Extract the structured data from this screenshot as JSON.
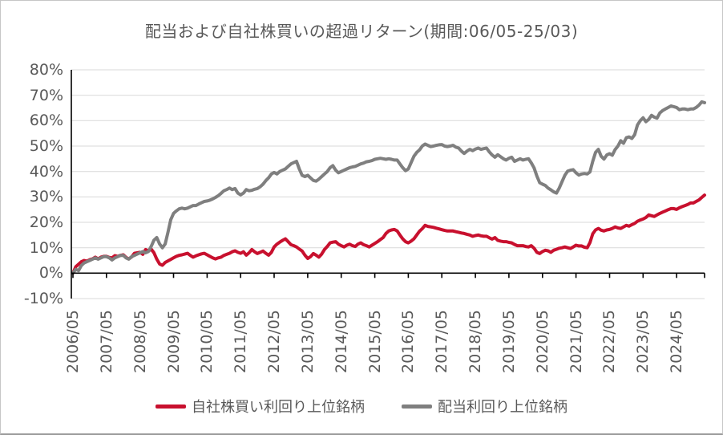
{
  "header": {
    "title": "配当および自社株買いの超過リターン(期間:06/05-25/03)"
  },
  "colors": {
    "buyback_red": "#C8102E",
    "dividend_gray": "#7F7F7F",
    "text_gray": "#595959",
    "gridline": "#D9D9D9",
    "axis": "#000000"
  },
  "legend": {
    "items": [
      {
        "key": "buyback",
        "label": "自社株買い利回り上位銘柄",
        "color": "#C8102E"
      },
      {
        "key": "dividend",
        "label": "配当利回り上位銘柄",
        "color": "#7F7F7F"
      }
    ]
  },
  "chart_data": {
    "type": "line",
    "title": "配当および自社株買いの超過リターン(期間:06/05-25/03)",
    "xlabel": "",
    "ylabel": "",
    "x_unit": "month",
    "x_start": "2006/05",
    "x_end": "2025/03",
    "months_per_x_tick": 12,
    "x_tick_labels": [
      "2006/05",
      "2007/05",
      "2008/05",
      "2009/05",
      "2010/05",
      "2011/05",
      "2012/05",
      "2013/05",
      "2014/05",
      "2015/05",
      "2016/05",
      "2017/05",
      "2018/05",
      "2019/05",
      "2020/05",
      "2021/05",
      "2022/05",
      "2023/05",
      "2024/05"
    ],
    "y_tick_labels": [
      "80%",
      "70%",
      "60%",
      "50%",
      "40%",
      "30%",
      "20%",
      "10%",
      "0%",
      "-10%"
    ],
    "y_tick_values": [
      80,
      70,
      60,
      50,
      40,
      30,
      20,
      10,
      0,
      -10
    ],
    "ylim": [
      -10,
      80
    ],
    "grid": "horizontal",
    "legend_position": "bottom",
    "series": [
      {
        "key": "buyback",
        "name": "自社株買い利回り上位銘柄",
        "color": "#C8102E",
        "values": [
          0,
          2.5,
          3.5,
          4.5,
          5,
          4.7,
          5.3,
          5.6,
          6.3,
          5.6,
          6.3,
          6.6,
          6.6,
          6.2,
          6,
          6.9,
          6.6,
          7,
          7.2,
          6.2,
          5.6,
          6.4,
          7.8,
          8,
          8.2,
          7.4,
          9.3,
          8.8,
          9.5,
          8,
          5.5,
          3.6,
          3.1,
          4.2,
          4.8,
          5.4,
          6,
          6.6,
          7,
          7.2,
          7.5,
          7.8,
          7,
          6.3,
          6.8,
          7.2,
          7.6,
          7.8,
          7.2,
          6.6,
          6,
          5.6,
          6,
          6.3,
          7,
          7.4,
          7.8,
          8.4,
          8.8,
          8.2,
          7.8,
          8.4,
          7.1,
          8,
          9.3,
          8.4,
          7.7,
          8.2,
          8.7,
          7.8,
          7.1,
          8.2,
          10.3,
          11.4,
          12.2,
          12.9,
          13.5,
          12.4,
          11.2,
          10.8,
          10.3,
          9.5,
          8.7,
          7.1,
          5.8,
          6.5,
          7.7,
          7.1,
          6.3,
          7.5,
          9.3,
          10.5,
          11.9,
          12.2,
          12.4,
          11.4,
          10.8,
          10.3,
          11,
          11.4,
          10.8,
          10.5,
          11.4,
          11.9,
          11.2,
          10.8,
          10.3,
          11,
          11.7,
          12.4,
          13.2,
          14,
          15.6,
          16.6,
          17,
          17.2,
          16.6,
          15,
          13.5,
          12.4,
          11.9,
          12.6,
          13.5,
          15,
          16.5,
          17.5,
          18.8,
          18.4,
          18.2,
          18,
          17.7,
          17.4,
          17.1,
          16.8,
          16.6,
          16.6,
          16.6,
          16.3,
          16.1,
          15.8,
          15.6,
          15.3,
          15,
          14.5,
          14.8,
          15,
          14.7,
          14.5,
          14.5,
          13.9,
          13.4,
          14,
          12.9,
          12.6,
          12.4,
          12.4,
          12.1,
          11.9,
          11.3,
          10.8,
          10.8,
          10.8,
          10.5,
          10.3,
          10.8,
          9.8,
          8.2,
          7.7,
          8.5,
          9,
          8.8,
          8.2,
          9,
          9.4,
          9.8,
          10,
          10.3,
          10,
          9.7,
          10.3,
          11,
          10.7,
          10.7,
          10.2,
          10,
          12,
          15.5,
          17,
          17.6,
          16.9,
          16.6,
          17,
          17.2,
          17.6,
          18.2,
          17.8,
          17.6,
          18.2,
          18.8,
          18.5,
          19.1,
          19.6,
          20.4,
          20.9,
          21.3,
          21.9,
          22.9,
          22.6,
          22.3,
          22.9,
          23.5,
          24,
          24.5,
          25,
          25.4,
          25.4,
          25.1,
          25.7,
          26.2,
          26.6,
          27,
          27.6,
          27.6,
          28.2,
          28.8,
          29.8,
          30.7
        ]
      },
      {
        "key": "dividend",
        "name": "配当利回り上位銘柄",
        "color": "#7F7F7F",
        "values": [
          0,
          1.5,
          1,
          3,
          4,
          4.5,
          5,
          5.5,
          6,
          5.5,
          6,
          6.5,
          6.5,
          6,
          5.2,
          6,
          6.5,
          7,
          7,
          6,
          5.5,
          6.5,
          7,
          7.5,
          8,
          8.5,
          8,
          8.5,
          10.5,
          13,
          14,
          11.5,
          10,
          11.5,
          16,
          21,
          23.5,
          24.5,
          25.3,
          25.6,
          25.3,
          25.6,
          26.1,
          26.6,
          26.6,
          27.2,
          27.7,
          28.2,
          28.4,
          28.7,
          29.2,
          29.8,
          30.5,
          31.4,
          32.4,
          32.9,
          33.5,
          32.9,
          33.3,
          31.5,
          30.8,
          31.5,
          32.9,
          32.4,
          32.6,
          33,
          33.3,
          34,
          35,
          36.4,
          37.5,
          39,
          39.6,
          39,
          40,
          40.5,
          41,
          42,
          43,
          43.5,
          44,
          41,
          38.5,
          38,
          38.5,
          37.5,
          36.5,
          36.2,
          37,
          38,
          39,
          40,
          41.5,
          42.3,
          40.5,
          39.5,
          40,
          40.5,
          41,
          41.5,
          41.8,
          42,
          42.5,
          43,
          43.3,
          43.8,
          44,
          44.3,
          44.8,
          45,
          45.2,
          45,
          44.8,
          45,
          44.8,
          44.5,
          44.5,
          43,
          41.5,
          40.3,
          41,
          43.5,
          46,
          47.5,
          48.5,
          50,
          50.8,
          50.3,
          49.8,
          50,
          50.3,
          50.5,
          50.6,
          50,
          49.8,
          50,
          50.3,
          49.6,
          49.2,
          48,
          47.1,
          48,
          48.7,
          48.2,
          48.8,
          49.2,
          48.7,
          49,
          49.2,
          47.7,
          46.5,
          45.6,
          46.6,
          45.8,
          45,
          44.5,
          45.2,
          45.6,
          44,
          44.5,
          45,
          44.5,
          44.8,
          45,
          43.4,
          41.4,
          38.2,
          35.6,
          35,
          34.5,
          33.5,
          32.8,
          32,
          31.5,
          33.5,
          36,
          38.5,
          40.1,
          40.5,
          40.7,
          39.5,
          38.6,
          39,
          39.2,
          39,
          39.8,
          44,
          47.5,
          48.7,
          46,
          44.9,
          46.5,
          47,
          46.4,
          48.6,
          50,
          52.1,
          51.1,
          53.3,
          53.6,
          53,
          54.5,
          58.3,
          60,
          61.1,
          59.6,
          60.5,
          62.1,
          61.4,
          61,
          63,
          64,
          64.6,
          65.2,
          65.8,
          65.5,
          65.2,
          64.3,
          64.6,
          64.6,
          64.3,
          64.6,
          64.6,
          65.2,
          66.1,
          67.4,
          67.1
        ]
      }
    ]
  }
}
